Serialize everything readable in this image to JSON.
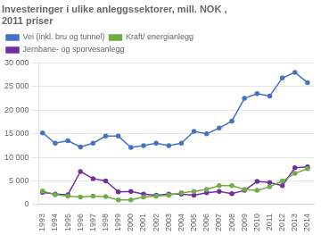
{
  "chart_data": {
    "type": "line",
    "title": "Investeringer i ulike anleggssektorer, mill. NOK ,",
    "subtitle": "2011 priser",
    "x": [
      1993,
      1994,
      1995,
      1996,
      1997,
      1998,
      1999,
      2000,
      2001,
      2002,
      2003,
      2004,
      2005,
      2006,
      2007,
      2008,
      2009,
      2010,
      2011,
      2012,
      2013,
      2014
    ],
    "series": [
      {
        "name": "Vei (inkl. bru og tunnel)",
        "color": "#4472C4",
        "marker": "circle",
        "values": [
          15200,
          13000,
          13500,
          12200,
          13000,
          14500,
          14500,
          12100,
          12500,
          13000,
          12500,
          13000,
          15500,
          15000,
          16200,
          17700,
          22500,
          23500,
          23000,
          26800,
          28000,
          25800
        ]
      },
      {
        "name": "Kraft/ energianlegg",
        "color": "#70AD47",
        "marker": "circle",
        "values": [
          2900,
          2100,
          1800,
          1600,
          1800,
          1700,
          1000,
          1000,
          1600,
          1800,
          2000,
          2500,
          2800,
          3200,
          4000,
          4000,
          3200,
          3000,
          3800,
          5000,
          6600,
          7600
        ]
      },
      {
        "name": "Jernbane- og sporvesanlegg",
        "color": "#7030A0",
        "marker": "circle",
        "values": [
          2600,
          2200,
          2100,
          7000,
          5500,
          5000,
          2700,
          2800,
          2200,
          2000,
          2200,
          2200,
          2000,
          2500,
          2800,
          2300,
          3000,
          4900,
          4700,
          4000,
          7800,
          8000
        ]
      }
    ],
    "xlim": [
      1992.7,
      2014.5
    ],
    "xticks": [
      1993,
      1994,
      1995,
      1996,
      1997,
      1998,
      1999,
      2000,
      2001,
      2002,
      2003,
      2004,
      2005,
      2006,
      2007,
      2008,
      2009,
      2010,
      2011,
      2012,
      2013,
      2014
    ],
    "ylim": [
      0,
      30000
    ],
    "yticks": [
      0,
      {
        "value": 5000,
        "label": "5 000"
      },
      {
        "value": 10000,
        "label": "10 000"
      },
      {
        "value": 15000,
        "label": "15 000"
      },
      {
        "value": 20000,
        "label": "20 000"
      },
      {
        "value": 25000,
        "label": "25 000"
      },
      {
        "value": 30000,
        "label": "30 000"
      }
    ],
    "grid": "y",
    "legend": "upper left"
  }
}
